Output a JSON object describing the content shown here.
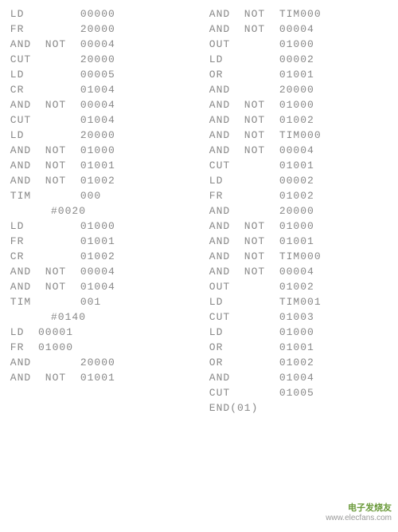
{
  "background_color": "#ffffff",
  "text_color": "#888888",
  "font_family": "Courier New, monospace",
  "font_size": 13,
  "watermark": {
    "brand": "电子发烧友",
    "url": "www.elecfans.com",
    "color": "#6a9a3a"
  },
  "left_column": [
    {
      "op": "LD",
      "mod": "",
      "val": "00000"
    },
    {
      "op": "FR",
      "mod": "",
      "val": "20000"
    },
    {
      "op": "AND",
      "mod": "NOT",
      "val": "00004"
    },
    {
      "op": "CUT",
      "mod": "",
      "val": "20000"
    },
    {
      "op": "LD",
      "mod": "",
      "val": "00005"
    },
    {
      "op": "CR",
      "mod": "",
      "val": "01004"
    },
    {
      "op": "AND",
      "mod": "NOT",
      "val": "00004"
    },
    {
      "op": "CUT",
      "mod": "",
      "val": "01004"
    },
    {
      "op": "LD",
      "mod": "",
      "val": "20000"
    },
    {
      "op": "AND",
      "mod": "NOT",
      "val": "01000"
    },
    {
      "op": "AND",
      "mod": "NOT",
      "val": "01001"
    },
    {
      "op": "AND",
      "mod": "NOT",
      "val": "01002"
    },
    {
      "op": "TIM",
      "mod": "",
      "val": "000"
    },
    {
      "op": "",
      "mod": "",
      "val": "#0020",
      "indent": true
    },
    {
      "op": "LD",
      "mod": "",
      "val": "01000"
    },
    {
      "op": "FR",
      "mod": "",
      "val": "01001"
    },
    {
      "op": "CR",
      "mod": "",
      "val": "01002"
    },
    {
      "op": "AND",
      "mod": "NOT",
      "val": "00004"
    },
    {
      "op": "AND",
      "mod": "NOT",
      "val": "01004"
    },
    {
      "op": "TIM",
      "mod": "",
      "val": "001"
    },
    {
      "op": "",
      "mod": "",
      "val": "#0140",
      "indent": true
    },
    {
      "op": "LD",
      "mod": "",
      "val": "00001",
      "compact": true
    },
    {
      "op": "FR",
      "mod": "",
      "val": "01000",
      "compact": true
    },
    {
      "op": "AND",
      "mod": "",
      "val": "20000"
    },
    {
      "op": "AND",
      "mod": "NOT",
      "val": "01001"
    }
  ],
  "right_column": [
    {
      "op": "AND",
      "mod": "NOT",
      "val": "TIM000"
    },
    {
      "op": "AND",
      "mod": "NOT",
      "val": "00004"
    },
    {
      "op": "OUT",
      "mod": "",
      "val": "01000"
    },
    {
      "op": "LD",
      "mod": "",
      "val": "00002"
    },
    {
      "op": "OR",
      "mod": "",
      "val": "01001"
    },
    {
      "op": "AND",
      "mod": "",
      "val": "20000"
    },
    {
      "op": "AND",
      "mod": "NOT",
      "val": "01000"
    },
    {
      "op": "AND",
      "mod": "NOT",
      "val": "01002"
    },
    {
      "op": "AND",
      "mod": "NOT",
      "val": "TIM000"
    },
    {
      "op": "AND",
      "mod": "NOT",
      "val": "00004"
    },
    {
      "op": "CUT",
      "mod": "",
      "val": "01001"
    },
    {
      "op": "LD",
      "mod": "",
      "val": "00002"
    },
    {
      "op": "FR",
      "mod": "",
      "val": "01002"
    },
    {
      "op": "AND",
      "mod": "",
      "val": "20000"
    },
    {
      "op": "AND",
      "mod": "NOT",
      "val": "01000"
    },
    {
      "op": "AND",
      "mod": "NOT",
      "val": "01001"
    },
    {
      "op": "AND",
      "mod": "NOT",
      "val": "TIM000"
    },
    {
      "op": "AND",
      "mod": "NOT",
      "val": "00004"
    },
    {
      "op": "OUT",
      "mod": "",
      "val": "01002"
    },
    {
      "op": "LD",
      "mod": "",
      "val": "TIM001"
    },
    {
      "op": "CUT",
      "mod": "",
      "val": "01003"
    },
    {
      "op": "LD",
      "mod": "",
      "val": "01000"
    },
    {
      "op": "OR",
      "mod": "",
      "val": "01001"
    },
    {
      "op": "OR",
      "mod": "",
      "val": "01002"
    },
    {
      "op": "AND",
      "mod": "",
      "val": "01004"
    },
    {
      "op": "CUT",
      "mod": "",
      "val": "01005"
    },
    {
      "op": "END(01)",
      "mod": "",
      "val": ""
    }
  ]
}
